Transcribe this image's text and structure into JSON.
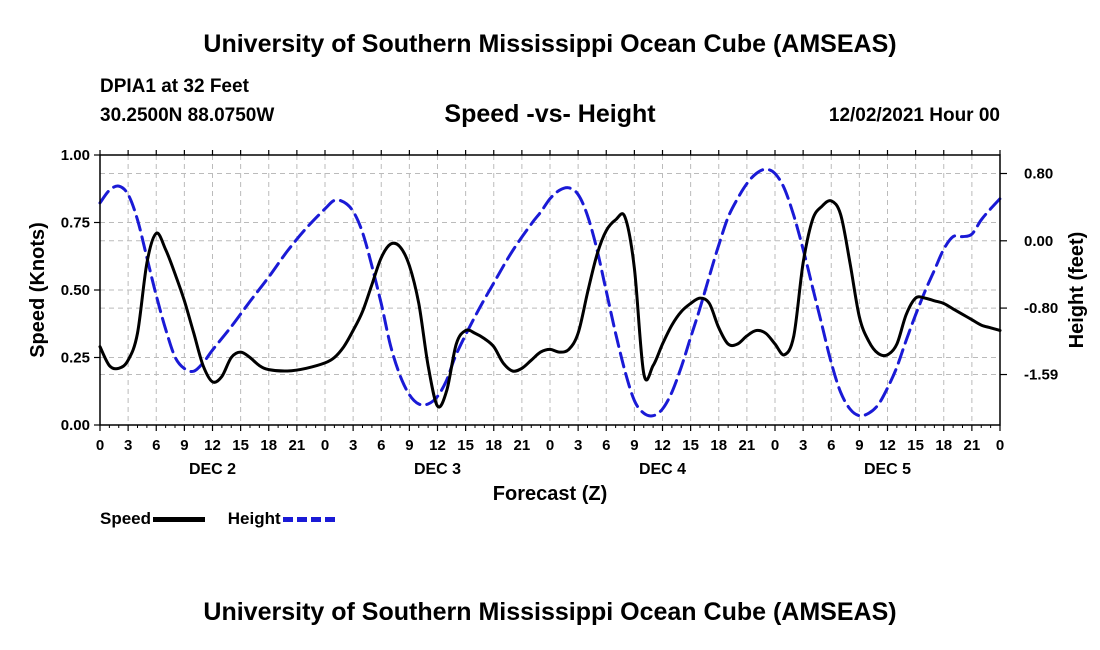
{
  "header": {
    "title": "University of Southern Mississippi Ocean Cube (AMSEAS)",
    "station": "DPIA1 at 32 Feet",
    "location": "30.2500N  88.0750W",
    "subtitle": "Speed -vs- Height",
    "date": "12/02/2021 Hour 00"
  },
  "footer": {
    "title": "University of Southern Mississippi Ocean Cube (AMSEAS)"
  },
  "legend": {
    "speed_label": "Speed",
    "height_label": "Height"
  },
  "colors": {
    "speed": "#000000",
    "height": "#1a1ad6",
    "grid": "#bbbbbb"
  },
  "chart_data": {
    "type": "line",
    "title": "Speed -vs- Height",
    "xlabel": "Forecast (Z)",
    "ylabel_left": "Speed (Knots)",
    "ylabel_right": "Height (feet)",
    "x_range": [
      0,
      96
    ],
    "x_tick_step": 3,
    "x_tick_labels": [
      "0",
      "3",
      "6",
      "9",
      "12",
      "15",
      "18",
      "21",
      "0",
      "3",
      "6",
      "9",
      "12",
      "15",
      "18",
      "21",
      "0",
      "3",
      "6",
      "9",
      "12",
      "15",
      "18",
      "21",
      "0",
      "3",
      "6",
      "9",
      "12",
      "15",
      "18",
      "21",
      "0"
    ],
    "day_labels": [
      {
        "label": "DEC 2",
        "hour": 12
      },
      {
        "label": "DEC 3",
        "hour": 36
      },
      {
        "label": "DEC 4",
        "hour": 60
      },
      {
        "label": "DEC 5",
        "hour": 84
      }
    ],
    "left_axis": {
      "range": [
        0,
        1
      ],
      "ticks": [
        0,
        0.25,
        0.5,
        0.75,
        1
      ],
      "tick_labels": [
        "0.00",
        "0.25",
        "0.50",
        "0.75",
        "1.00"
      ]
    },
    "right_axis": {
      "range": [
        -2.19,
        1.02
      ],
      "ticks": [
        0.8,
        0,
        -0.8,
        -1.59
      ],
      "tick_labels": [
        "0.80",
        "0.00",
        "-0.80",
        "-1.59"
      ]
    },
    "grid": true,
    "series": [
      {
        "name": "Speed",
        "axis": "left",
        "style": "solid",
        "points": [
          [
            0,
            0.29
          ],
          [
            1,
            0.22
          ],
          [
            2,
            0.21
          ],
          [
            3,
            0.24
          ],
          [
            4,
            0.34
          ],
          [
            5,
            0.6
          ],
          [
            6,
            0.71
          ],
          [
            7,
            0.65
          ],
          [
            8,
            0.56
          ],
          [
            9,
            0.46
          ],
          [
            10,
            0.34
          ],
          [
            11,
            0.22
          ],
          [
            12,
            0.16
          ],
          [
            13,
            0.18
          ],
          [
            14,
            0.25
          ],
          [
            15,
            0.27
          ],
          [
            16,
            0.25
          ],
          [
            17,
            0.22
          ],
          [
            18,
            0.205
          ],
          [
            20,
            0.2
          ],
          [
            22,
            0.21
          ],
          [
            24,
            0.23
          ],
          [
            25,
            0.25
          ],
          [
            26,
            0.29
          ],
          [
            27,
            0.35
          ],
          [
            28,
            0.42
          ],
          [
            29,
            0.52
          ],
          [
            30,
            0.62
          ],
          [
            31,
            0.67
          ],
          [
            32,
            0.66
          ],
          [
            33,
            0.59
          ],
          [
            34,
            0.45
          ],
          [
            35,
            0.22
          ],
          [
            36,
            0.07
          ],
          [
            37,
            0.13
          ],
          [
            38,
            0.3
          ],
          [
            39,
            0.35
          ],
          [
            40,
            0.34
          ],
          [
            41,
            0.32
          ],
          [
            42,
            0.29
          ],
          [
            43,
            0.23
          ],
          [
            44,
            0.2
          ],
          [
            45,
            0.21
          ],
          [
            46,
            0.24
          ],
          [
            47,
            0.27
          ],
          [
            48,
            0.28
          ],
          [
            49,
            0.27
          ],
          [
            50,
            0.28
          ],
          [
            51,
            0.34
          ],
          [
            52,
            0.49
          ],
          [
            53,
            0.63
          ],
          [
            54,
            0.72
          ],
          [
            55,
            0.76
          ],
          [
            56,
            0.77
          ],
          [
            57,
            0.58
          ],
          [
            58,
            0.19
          ],
          [
            59,
            0.22
          ],
          [
            60,
            0.3
          ],
          [
            61,
            0.37
          ],
          [
            62,
            0.42
          ],
          [
            63,
            0.45
          ],
          [
            64,
            0.47
          ],
          [
            65,
            0.45
          ],
          [
            66,
            0.36
          ],
          [
            67,
            0.3
          ],
          [
            68,
            0.3
          ],
          [
            69,
            0.33
          ],
          [
            70,
            0.35
          ],
          [
            71,
            0.34
          ],
          [
            72,
            0.3
          ],
          [
            73,
            0.26
          ],
          [
            74,
            0.33
          ],
          [
            75,
            0.6
          ],
          [
            76,
            0.76
          ],
          [
            77,
            0.81
          ],
          [
            78,
            0.83
          ],
          [
            79,
            0.78
          ],
          [
            80,
            0.6
          ],
          [
            81,
            0.4
          ],
          [
            82,
            0.31
          ],
          [
            83,
            0.265
          ],
          [
            84,
            0.26
          ],
          [
            85,
            0.3
          ],
          [
            86,
            0.41
          ],
          [
            87,
            0.47
          ],
          [
            88,
            0.47
          ],
          [
            89,
            0.46
          ],
          [
            90,
            0.45
          ],
          [
            91,
            0.43
          ],
          [
            92,
            0.41
          ],
          [
            93,
            0.39
          ],
          [
            94,
            0.37
          ],
          [
            95,
            0.36
          ],
          [
            96,
            0.35
          ]
        ]
      },
      {
        "name": "Height",
        "axis": "right",
        "style": "dashed",
        "points": [
          [
            0,
            0.45
          ],
          [
            1,
            0.6
          ],
          [
            2,
            0.65
          ],
          [
            3,
            0.55
          ],
          [
            4,
            0.25
          ],
          [
            5,
            -0.2
          ],
          [
            6,
            -0.65
          ],
          [
            7,
            -1.05
          ],
          [
            8,
            -1.38
          ],
          [
            9,
            -1.52
          ],
          [
            10,
            -1.55
          ],
          [
            11,
            -1.45
          ],
          [
            12,
            -1.3
          ],
          [
            14,
            -1.02
          ],
          [
            16,
            -0.72
          ],
          [
            18,
            -0.43
          ],
          [
            20,
            -0.12
          ],
          [
            22,
            0.15
          ],
          [
            24,
            0.38
          ],
          [
            25,
            0.48
          ],
          [
            26,
            0.46
          ],
          [
            27,
            0.35
          ],
          [
            28,
            0.1
          ],
          [
            29,
            -0.3
          ],
          [
            30,
            -0.75
          ],
          [
            31,
            -1.25
          ],
          [
            32,
            -1.6
          ],
          [
            33,
            -1.83
          ],
          [
            34,
            -1.94
          ],
          [
            35,
            -1.94
          ],
          [
            36,
            -1.85
          ],
          [
            37,
            -1.65
          ],
          [
            38,
            -1.35
          ],
          [
            40,
            -0.9
          ],
          [
            42,
            -0.5
          ],
          [
            44,
            -0.12
          ],
          [
            46,
            0.2
          ],
          [
            47,
            0.34
          ],
          [
            48,
            0.5
          ],
          [
            49,
            0.6
          ],
          [
            50,
            0.63
          ],
          [
            51,
            0.55
          ],
          [
            52,
            0.3
          ],
          [
            53,
            -0.1
          ],
          [
            54,
            -0.6
          ],
          [
            55,
            -1.1
          ],
          [
            56,
            -1.55
          ],
          [
            57,
            -1.9
          ],
          [
            58,
            -2.05
          ],
          [
            59,
            -2.08
          ],
          [
            60,
            -2.0
          ],
          [
            61,
            -1.8
          ],
          [
            62,
            -1.5
          ],
          [
            63,
            -1.15
          ],
          [
            64,
            -0.8
          ],
          [
            65,
            -0.42
          ],
          [
            66,
            -0.05
          ],
          [
            67,
            0.28
          ],
          [
            68,
            0.5
          ],
          [
            69,
            0.68
          ],
          [
            70,
            0.8
          ],
          [
            71,
            0.85
          ],
          [
            72,
            0.8
          ],
          [
            73,
            0.62
          ],
          [
            74,
            0.3
          ],
          [
            75,
            -0.1
          ],
          [
            76,
            -0.55
          ],
          [
            77,
            -1.0
          ],
          [
            78,
            -1.45
          ],
          [
            79,
            -1.8
          ],
          [
            80,
            -2.0
          ],
          [
            81,
            -2.08
          ],
          [
            82,
            -2.05
          ],
          [
            83,
            -1.95
          ],
          [
            84,
            -1.75
          ],
          [
            85,
            -1.5
          ],
          [
            86,
            -1.18
          ],
          [
            87,
            -0.88
          ],
          [
            88,
            -0.6
          ],
          [
            89,
            -0.35
          ],
          [
            90,
            -0.1
          ],
          [
            91,
            0.05
          ],
          [
            92,
            0.05
          ],
          [
            93,
            0.08
          ],
          [
            94,
            0.25
          ],
          [
            95,
            0.38
          ],
          [
            96,
            0.5
          ]
        ]
      }
    ]
  }
}
